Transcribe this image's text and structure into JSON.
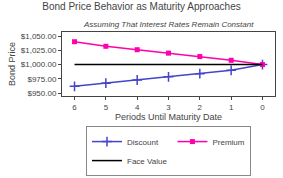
{
  "chart_data": {
    "type": "line",
    "title": "Bond Price Behavior as Maturity Approaches",
    "subtitle": "Assuming That Interest Rates Remain Constant",
    "xlabel": "Periods Until Maturity Date",
    "ylabel": "Bond Price",
    "x": [
      6,
      5,
      4,
      3,
      2,
      1,
      0
    ],
    "series": [
      {
        "name": "Discount",
        "color": "#4444cc",
        "marker": "plus",
        "values": [
          962.0,
          967.5,
          973.0,
          978.5,
          984.0,
          990.0,
          1000.0
        ]
      },
      {
        "name": "Premium",
        "color": "#ff00aa",
        "marker": "square",
        "values": [
          1040.0,
          1032.0,
          1026.0,
          1020.0,
          1014.0,
          1007.5,
          1000.0
        ]
      },
      {
        "name": "Face Value",
        "color": "#000000",
        "marker": "none",
        "values": [
          1000.0,
          1000.0,
          1000.0,
          1000.0,
          1000.0,
          1000.0,
          1000.0
        ]
      }
    ],
    "xlim": [
      6.4,
      -0.4
    ],
    "xticks": [
      6,
      5,
      4,
      3,
      2,
      1,
      0
    ],
    "ylim": [
      945,
      1057
    ],
    "yticks": [
      {
        "value": 950,
        "label": "$950.00"
      },
      {
        "value": 975,
        "label": "$975.00"
      },
      {
        "value": 1000,
        "label": "$1,000.00"
      },
      {
        "value": 1025,
        "label": "$1,025.00"
      },
      {
        "value": 1050,
        "label": "$1,050.00"
      }
    ],
    "grid": false,
    "legend": "bottom"
  }
}
